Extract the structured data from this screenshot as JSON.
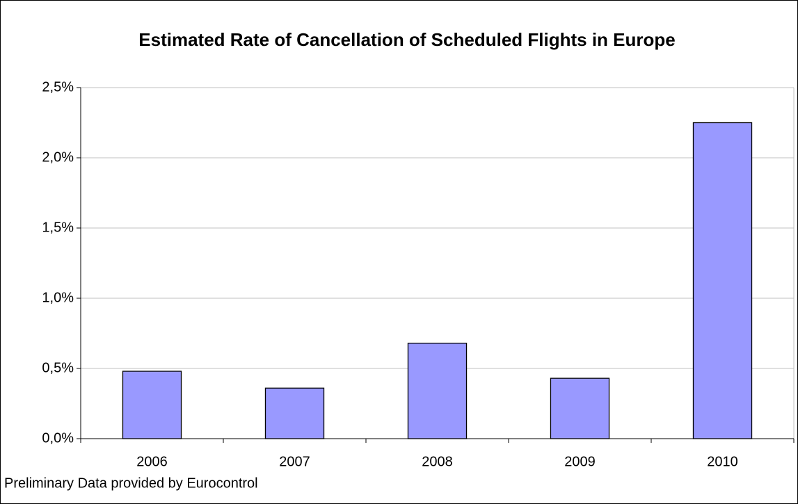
{
  "chart_data": {
    "type": "bar",
    "title": "Estimated Rate of Cancellation of Scheduled Flights in Europe",
    "note": "Preliminary Data provided by Eurocontrol",
    "categories": [
      "2006",
      "2007",
      "2008",
      "2009",
      "2010"
    ],
    "values": [
      0.48,
      0.36,
      0.68,
      0.43,
      2.25
    ],
    "color": "#9999ff",
    "ylim": [
      0,
      2.5
    ],
    "yticks": [
      {
        "value": 0,
        "label": "0,0%"
      },
      {
        "value": 0.5,
        "label": "0,5%"
      },
      {
        "value": 1,
        "label": "1,0%"
      },
      {
        "value": 1.5,
        "label": "1,5%"
      },
      {
        "value": 2,
        "label": "2,0%"
      },
      {
        "value": 2.5,
        "label": "2,5%"
      }
    ],
    "grid": true
  }
}
